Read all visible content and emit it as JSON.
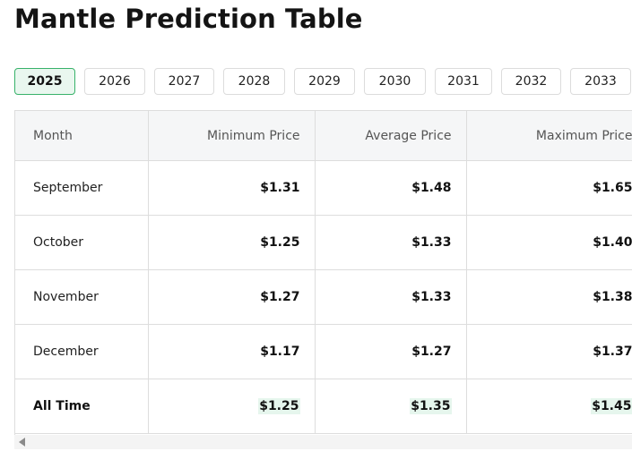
{
  "title": "Mantle Prediction Table",
  "tabs": [
    {
      "label": "2025",
      "active": true
    },
    {
      "label": "2026"
    },
    {
      "label": "2027"
    },
    {
      "label": "2028"
    },
    {
      "label": "2029"
    },
    {
      "label": "2030"
    },
    {
      "label": "2031"
    },
    {
      "label": "2032"
    },
    {
      "label": "2033"
    }
  ],
  "table": {
    "headers": {
      "month": "Month",
      "min": "Minimum Price",
      "avg": "Average Price",
      "max": "Maximum Price"
    },
    "rows": [
      {
        "month": "September",
        "min": "$1.31",
        "avg": "$1.48",
        "max": "$1.65"
      },
      {
        "month": "October",
        "min": "$1.25",
        "avg": "$1.33",
        "max": "$1.40"
      },
      {
        "month": "November",
        "min": "$1.27",
        "avg": "$1.33",
        "max": "$1.38"
      },
      {
        "month": "December",
        "min": "$1.17",
        "avg": "$1.27",
        "max": "$1.37"
      },
      {
        "month": "All Time",
        "min": "$1.25",
        "avg": "$1.35",
        "max": "$1.45"
      }
    ]
  },
  "colors": {
    "active_tab_bg": "#e9f7ef",
    "active_tab_border": "#38b26a",
    "highlight": "#e6f6ed"
  },
  "icons": {
    "scroll_left": "scroll-left-arrow-icon"
  }
}
